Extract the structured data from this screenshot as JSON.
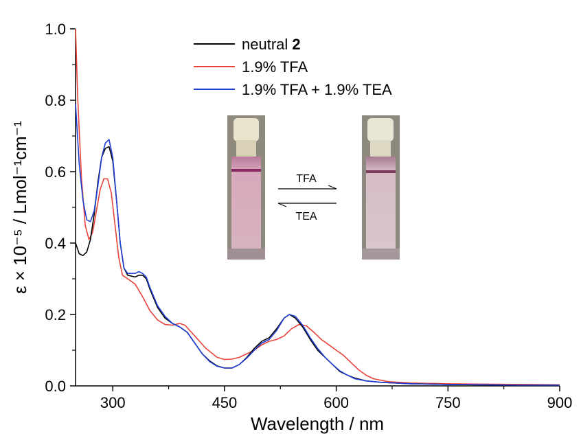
{
  "chart_data": {
    "type": "line",
    "xlabel": "Wavelength / nm",
    "ylabel": "ε × 10⁻⁵ / Lmol⁻¹cm⁻¹",
    "xlim": [
      250,
      900
    ],
    "ylim": [
      0.0,
      1.0
    ],
    "xticks": [
      300,
      450,
      600,
      750,
      900
    ],
    "yticks": [
      0.0,
      0.2,
      0.4,
      0.6,
      0.8,
      1.0
    ],
    "xtick_labels": [
      "300",
      "450",
      "600",
      "750",
      "900"
    ],
    "ytick_labels": [
      "0.0",
      "0.2",
      "0.4",
      "0.6",
      "0.8",
      "1.0"
    ],
    "legend_position": "top-center",
    "grid": false,
    "series": [
      {
        "name": "neutral 2",
        "name_parts": [
          "neutral ",
          "2"
        ],
        "color": "#000000",
        "points": [
          [
            250,
            0.4
          ],
          [
            255,
            0.37
          ],
          [
            260,
            0.365
          ],
          [
            265,
            0.375
          ],
          [
            270,
            0.41
          ],
          [
            275,
            0.48
          ],
          [
            280,
            0.57
          ],
          [
            285,
            0.64
          ],
          [
            290,
            0.665
          ],
          [
            295,
            0.67
          ],
          [
            300,
            0.63
          ],
          [
            305,
            0.52
          ],
          [
            310,
            0.4
          ],
          [
            315,
            0.33
          ],
          [
            320,
            0.31
          ],
          [
            330,
            0.305
          ],
          [
            335,
            0.31
          ],
          [
            340,
            0.31
          ],
          [
            345,
            0.3
          ],
          [
            350,
            0.27
          ],
          [
            360,
            0.22
          ],
          [
            370,
            0.19
          ],
          [
            380,
            0.175
          ],
          [
            390,
            0.165
          ],
          [
            400,
            0.15
          ],
          [
            410,
            0.12
          ],
          [
            420,
            0.09
          ],
          [
            430,
            0.07
          ],
          [
            440,
            0.056
          ],
          [
            450,
            0.05
          ],
          [
            460,
            0.05
          ],
          [
            470,
            0.06
          ],
          [
            480,
            0.08
          ],
          [
            490,
            0.105
          ],
          [
            500,
            0.125
          ],
          [
            510,
            0.135
          ],
          [
            520,
            0.16
          ],
          [
            530,
            0.19
          ],
          [
            537,
            0.2
          ],
          [
            545,
            0.19
          ],
          [
            555,
            0.165
          ],
          [
            565,
            0.13
          ],
          [
            575,
            0.1
          ],
          [
            585,
            0.08
          ],
          [
            595,
            0.06
          ],
          [
            605,
            0.04
          ],
          [
            615,
            0.03
          ],
          [
            625,
            0.022
          ],
          [
            640,
            0.014
          ],
          [
            660,
            0.01
          ],
          [
            680,
            0.008
          ],
          [
            700,
            0.006
          ],
          [
            750,
            0.004
          ],
          [
            800,
            0.003
          ],
          [
            850,
            0.002
          ],
          [
            900,
            0.002
          ]
        ]
      },
      {
        "name": "1.9% TFA",
        "color": "#e8433a",
        "points": [
          [
            250,
            1.0
          ],
          [
            253,
            0.8
          ],
          [
            258,
            0.58
          ],
          [
            263,
            0.45
          ],
          [
            268,
            0.41
          ],
          [
            273,
            0.43
          ],
          [
            278,
            0.49
          ],
          [
            283,
            0.55
          ],
          [
            288,
            0.58
          ],
          [
            293,
            0.58
          ],
          [
            298,
            0.54
          ],
          [
            303,
            0.45
          ],
          [
            308,
            0.36
          ],
          [
            313,
            0.31
          ],
          [
            320,
            0.3
          ],
          [
            330,
            0.285
          ],
          [
            340,
            0.25
          ],
          [
            350,
            0.21
          ],
          [
            360,
            0.185
          ],
          [
            370,
            0.172
          ],
          [
            380,
            0.17
          ],
          [
            390,
            0.175
          ],
          [
            397,
            0.17
          ],
          [
            410,
            0.14
          ],
          [
            425,
            0.105
          ],
          [
            440,
            0.08
          ],
          [
            450,
            0.074
          ],
          [
            460,
            0.075
          ],
          [
            470,
            0.08
          ],
          [
            480,
            0.09
          ],
          [
            490,
            0.1
          ],
          [
            500,
            0.115
          ],
          [
            510,
            0.125
          ],
          [
            520,
            0.13
          ],
          [
            530,
            0.14
          ],
          [
            540,
            0.16
          ],
          [
            550,
            0.172
          ],
          [
            560,
            0.168
          ],
          [
            570,
            0.15
          ],
          [
            580,
            0.13
          ],
          [
            590,
            0.115
          ],
          [
            600,
            0.1
          ],
          [
            610,
            0.085
          ],
          [
            620,
            0.065
          ],
          [
            630,
            0.045
          ],
          [
            640,
            0.03
          ],
          [
            650,
            0.02
          ],
          [
            670,
            0.012
          ],
          [
            700,
            0.008
          ],
          [
            750,
            0.006
          ],
          [
            800,
            0.005
          ],
          [
            850,
            0.004
          ],
          [
            900,
            0.003
          ]
        ]
      },
      {
        "name": "1.9% TFA + 1.9% TEA",
        "color": "#1f3fd6",
        "points": [
          [
            250,
            0.79
          ],
          [
            255,
            0.62
          ],
          [
            260,
            0.52
          ],
          [
            265,
            0.465
          ],
          [
            270,
            0.46
          ],
          [
            275,
            0.49
          ],
          [
            280,
            0.56
          ],
          [
            285,
            0.64
          ],
          [
            290,
            0.68
          ],
          [
            295,
            0.69
          ],
          [
            300,
            0.64
          ],
          [
            305,
            0.52
          ],
          [
            310,
            0.4
          ],
          [
            315,
            0.33
          ],
          [
            320,
            0.315
          ],
          [
            330,
            0.315
          ],
          [
            335,
            0.32
          ],
          [
            340,
            0.315
          ],
          [
            345,
            0.305
          ],
          [
            350,
            0.275
          ],
          [
            360,
            0.225
          ],
          [
            370,
            0.195
          ],
          [
            380,
            0.175
          ],
          [
            390,
            0.165
          ],
          [
            400,
            0.15
          ],
          [
            410,
            0.12
          ],
          [
            420,
            0.09
          ],
          [
            430,
            0.068
          ],
          [
            440,
            0.055
          ],
          [
            450,
            0.05
          ],
          [
            460,
            0.05
          ],
          [
            470,
            0.06
          ],
          [
            480,
            0.078
          ],
          [
            490,
            0.1
          ],
          [
            500,
            0.12
          ],
          [
            510,
            0.13
          ],
          [
            520,
            0.155
          ],
          [
            530,
            0.19
          ],
          [
            537,
            0.2
          ],
          [
            545,
            0.195
          ],
          [
            555,
            0.17
          ],
          [
            565,
            0.135
          ],
          [
            575,
            0.105
          ],
          [
            585,
            0.08
          ],
          [
            595,
            0.06
          ],
          [
            605,
            0.042
          ],
          [
            615,
            0.03
          ],
          [
            625,
            0.02
          ],
          [
            640,
            0.014
          ],
          [
            660,
            0.01
          ],
          [
            680,
            0.008
          ],
          [
            700,
            0.006
          ],
          [
            750,
            0.004
          ],
          [
            800,
            0.003
          ],
          [
            850,
            0.002
          ],
          [
            900,
            0.002
          ]
        ]
      }
    ],
    "inset": {
      "arrow_forward_label": "TFA",
      "arrow_back_label": "TEA"
    }
  }
}
